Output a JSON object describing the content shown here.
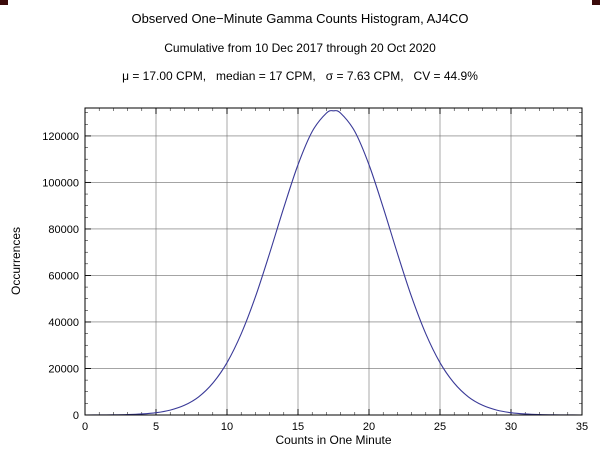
{
  "header": {
    "title": "Observed One−Minute Gamma Counts Histogram, AJ4CO",
    "subtitle": "Cumulative from 10 Dec 2017 through 20 Oct 2020",
    "stats_line": "μ = 17.00 CPM,   median = 17 CPM,   σ = 7.63 CPM,   CV = 44.9%"
  },
  "decorations": {
    "fiducial_color": "#3a0a0a"
  },
  "chart_data": {
    "type": "line",
    "title": "Observed One−Minute Gamma Counts Histogram, AJ4CO",
    "subtitle": "Cumulative from 10 Dec 2017 through 20 Oct 2020",
    "annotations": [
      "μ = 17.00 CPM",
      "median = 17 CPM",
      "σ = 7.63 CPM",
      "CV = 44.9%"
    ],
    "xlabel": "Counts in One Minute",
    "ylabel": "Occurrences",
    "xlim": [
      0,
      35
    ],
    "ylim": [
      0,
      132000
    ],
    "xticks": [
      0,
      5,
      10,
      15,
      20,
      25,
      30,
      35
    ],
    "yticks": [
      0,
      20000,
      40000,
      60000,
      80000,
      100000,
      120000
    ],
    "grid": true,
    "legend": false,
    "x": [
      0,
      1,
      2,
      3,
      4,
      5,
      6,
      7,
      8,
      9,
      10,
      11,
      12,
      13,
      14,
      15,
      16,
      17,
      17.5,
      18,
      19,
      20,
      21,
      22,
      23,
      24,
      25,
      26,
      27,
      28,
      29,
      30,
      31,
      32,
      33,
      34,
      35
    ],
    "y": [
      0,
      30,
      70,
      180,
      440,
      990,
      2100,
      4170,
      7780,
      13700,
      22500,
      34900,
      50800,
      69500,
      89200,
      107600,
      121900,
      129800,
      130800,
      129800,
      121900,
      107600,
      89200,
      69500,
      50800,
      34900,
      22500,
      13700,
      7780,
      4170,
      2100,
      990,
      440,
      180,
      70,
      30,
      0
    ],
    "line_color": "#3a3a98",
    "grid_color": "#6e6e6e",
    "frame_color": "#000000"
  }
}
